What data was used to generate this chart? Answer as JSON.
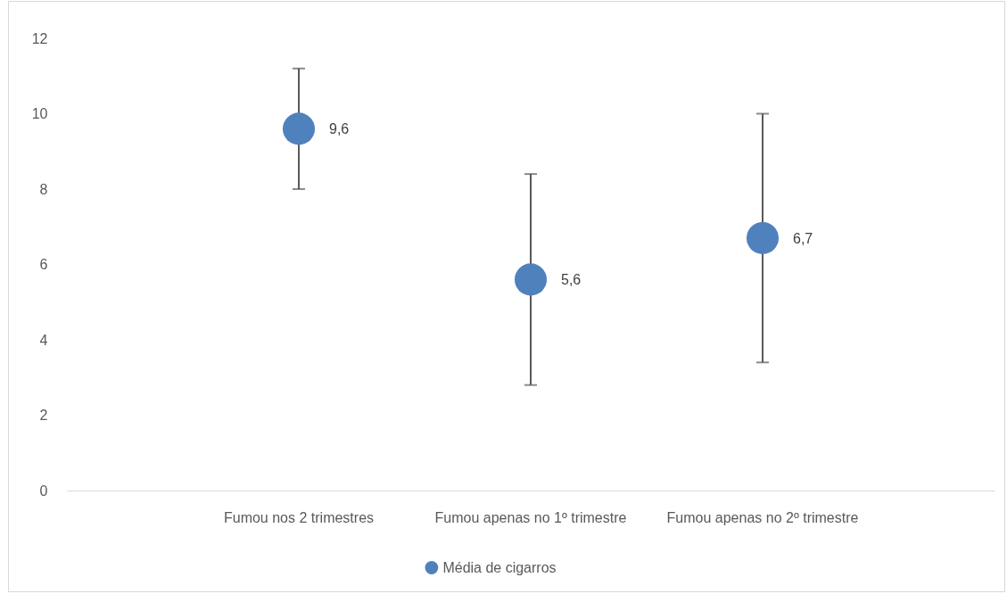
{
  "chart_data": {
    "type": "scatter",
    "categories": [
      "Fumou nos 2 trimestres",
      "Fumou apenas no 1º trimestre",
      "Fumou apenas no 2º trimestre"
    ],
    "series": [
      {
        "name": "Média de cigarros",
        "color": "#4f81bd",
        "values": [
          9.6,
          5.6,
          6.7
        ],
        "errors": [
          [
            8.0,
            11.2
          ],
          [
            2.8,
            8.4
          ],
          [
            3.4,
            10.0
          ]
        ],
        "value_labels": [
          "9,6",
          "5,6",
          "6,7"
        ]
      }
    ],
    "ylim": [
      0,
      12
    ],
    "yticks": [
      0,
      2,
      4,
      6,
      8,
      10,
      12
    ],
    "legend": "bottom",
    "marker": "circle",
    "grid": false
  }
}
